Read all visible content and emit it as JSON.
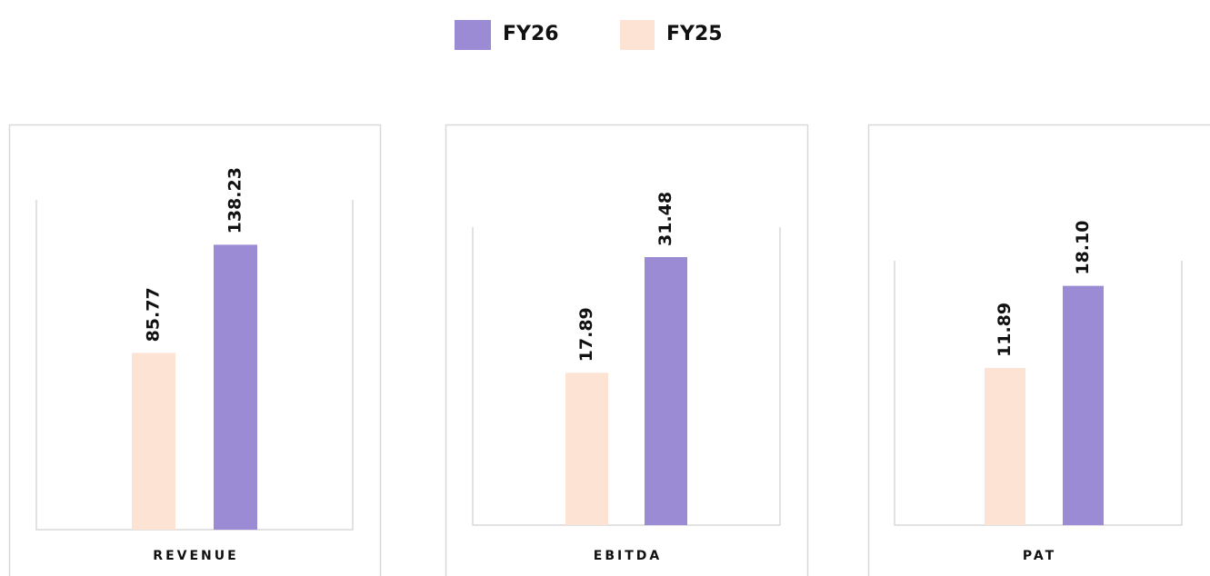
{
  "legend": [
    {
      "name": "FY26",
      "color": "#9a8bd4"
    },
    {
      "name": "FY25",
      "color": "#fde3d3"
    }
  ],
  "chart_data": [
    {
      "type": "bar",
      "xlabel": "REVENUE",
      "values": [
        138.23,
        85.77
      ],
      "ylim": [
        0,
        160
      ]
    },
    {
      "type": "bar",
      "xlabel": "EBITDA",
      "values": [
        31.48,
        17.89
      ],
      "ylim": [
        0,
        35
      ]
    },
    {
      "type": "bar",
      "xlabel": "PAT",
      "values": [
        18.1,
        11.89
      ],
      "value_labels": [
        "18.10",
        "11.89"
      ],
      "ylim": [
        0,
        20
      ]
    }
  ]
}
